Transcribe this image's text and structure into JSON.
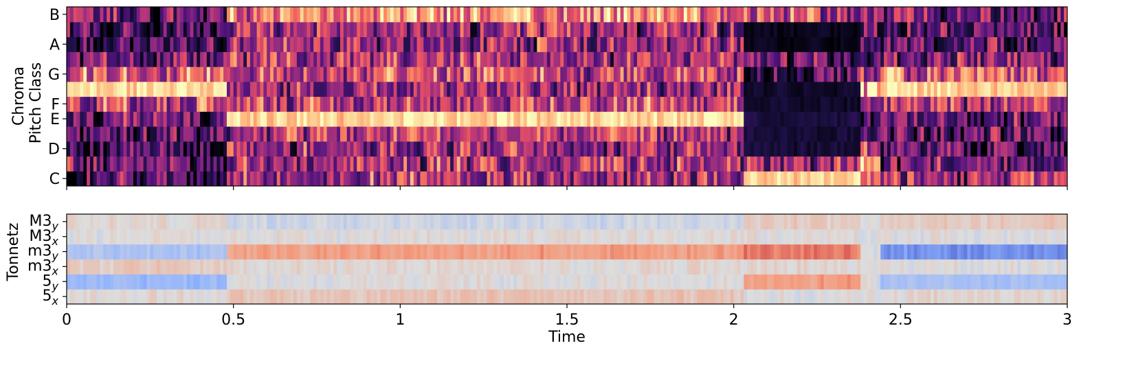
{
  "chart_data": [
    {
      "type": "heatmap",
      "panel": "chroma",
      "ylabel_lines": [
        "Chroma",
        "Pitch Class"
      ],
      "xlabel": "",
      "xlim": [
        0,
        3
      ],
      "x_ticks": [
        0,
        0.5,
        1,
        1.5,
        2,
        2.5,
        3
      ],
      "x_tick_labels_shown": false,
      "rows": [
        "C",
        "C#",
        "D",
        "D#",
        "E",
        "F",
        "F#",
        "G",
        "G#",
        "A",
        "A#",
        "B"
      ],
      "y_tick_labels": [
        {
          "row": "C",
          "label": "C"
        },
        {
          "row": "D",
          "label": "D"
        },
        {
          "row": "E",
          "label": "E"
        },
        {
          "row": "F",
          "label": "F"
        },
        {
          "row": "G",
          "label": "G"
        },
        {
          "row": "A",
          "label": "A"
        },
        {
          "row": "B",
          "label": "B"
        }
      ],
      "colormap": "magma",
      "color_range": [
        0,
        1
      ],
      "segments_note_free": true,
      "segments": [
        {
          "t": [
            0.0,
            0.48
          ],
          "values": [
            0.25,
            0.35,
            0.22,
            0.25,
            0.3,
            0.55,
            1.0,
            0.62,
            0.3,
            0.2,
            0.2,
            0.35
          ]
        },
        {
          "t": [
            0.48,
            2.03
          ],
          "values": [
            0.5,
            0.48,
            0.42,
            0.5,
            1.0,
            0.55,
            0.45,
            0.55,
            0.48,
            0.45,
            0.42,
            0.72
          ]
        },
        {
          "t": [
            2.03,
            2.38
          ],
          "values": [
            1.0,
            0.45,
            0.1,
            0.1,
            0.12,
            0.08,
            0.08,
            0.2,
            0.3,
            0.05,
            0.05,
            0.55
          ]
        },
        {
          "t": [
            2.38,
            2.44
          ],
          "values": [
            0.75,
            0.8,
            0.5,
            0.4,
            0.35,
            0.45,
            0.9,
            0.4,
            0.35,
            0.3,
            0.3,
            0.5
          ]
        },
        {
          "t": [
            2.44,
            3.0
          ],
          "values": [
            0.45,
            0.35,
            0.25,
            0.28,
            0.3,
            0.5,
            1.0,
            0.6,
            0.4,
            0.25,
            0.25,
            0.35
          ]
        }
      ]
    },
    {
      "type": "heatmap",
      "panel": "tonnetz",
      "ylabel": "Tonnetz",
      "xlabel": "Time",
      "xlim": [
        0,
        3
      ],
      "x_ticks": [
        0,
        0.5,
        1,
        1.5,
        2,
        2.5,
        3
      ],
      "x_tick_labels": [
        "0",
        "0.5",
        "1",
        "1.5",
        "2",
        "2.5",
        "3"
      ],
      "rows": [
        {
          "base": "5",
          "sub": "x"
        },
        {
          "base": "5",
          "sub": "y"
        },
        {
          "base": "m3",
          "sub": "x"
        },
        {
          "base": "m3",
          "sub": "y"
        },
        {
          "base": "M3",
          "sub": "x"
        },
        {
          "base": "M3",
          "sub": "y"
        }
      ],
      "colormap": "coolwarm",
      "color_range": [
        -1,
        1
      ],
      "segments": [
        {
          "t": [
            0.0,
            0.48
          ],
          "values": [
            0.05,
            -0.4,
            0.15,
            -0.3,
            0.0,
            0.05
          ]
        },
        {
          "t": [
            0.48,
            2.03
          ],
          "values": [
            0.2,
            0.0,
            0.05,
            0.45,
            0.02,
            -0.1
          ]
        },
        {
          "t": [
            2.03,
            2.38
          ],
          "values": [
            0.0,
            0.45,
            0.05,
            0.6,
            0.02,
            0.15
          ]
        },
        {
          "t": [
            2.38,
            2.44
          ],
          "values": [
            0.0,
            0.0,
            0.0,
            0.0,
            0.0,
            0.0
          ]
        },
        {
          "t": [
            2.44,
            3.0
          ],
          "values": [
            0.05,
            -0.35,
            0.0,
            -0.65,
            0.0,
            0.15
          ]
        }
      ]
    }
  ]
}
